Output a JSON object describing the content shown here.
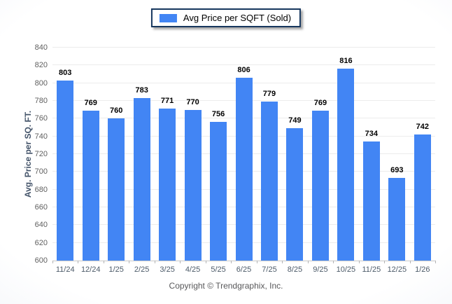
{
  "chart_data": {
    "type": "bar",
    "title": "",
    "categories": [
      "11/24",
      "12/24",
      "1/25",
      "2/25",
      "3/25",
      "4/25",
      "5/25",
      "6/25",
      "7/25",
      "8/25",
      "9/25",
      "10/25",
      "11/25",
      "12/25",
      "1/26"
    ],
    "values": [
      803,
      769,
      760,
      783,
      771,
      770,
      756,
      806,
      779,
      749,
      769,
      816,
      734,
      693,
      742
    ],
    "xlabel": "",
    "ylabel": "Avg. Price per SQ. FT.",
    "ylim": [
      600,
      840
    ],
    "yticks": [
      600,
      620,
      640,
      660,
      680,
      700,
      720,
      740,
      760,
      780,
      800,
      820,
      840
    ],
    "grid": "horizontal",
    "show_value_labels": true,
    "legend_position": "top-center",
    "legend": [
      {
        "label": "Avg Price per SQFT (Sold)",
        "color": "#4285f4"
      }
    ]
  },
  "footer": {
    "copyright": "Copyright © Trendgraphix, Inc."
  },
  "colors": {
    "bar": "#4285f4",
    "grid": "#ececec",
    "axis": "#c9c9c9",
    "tickmark": "#b5b5b5",
    "y_tick_label": "#5f5f5f",
    "x_tick_label": "#4c5a68",
    "axis_title": "#44546a",
    "legend_border": "#17375e",
    "footer_text": "#58585a",
    "bg_center": "#ffffff",
    "bg_edge": "#e3e8f2"
  }
}
